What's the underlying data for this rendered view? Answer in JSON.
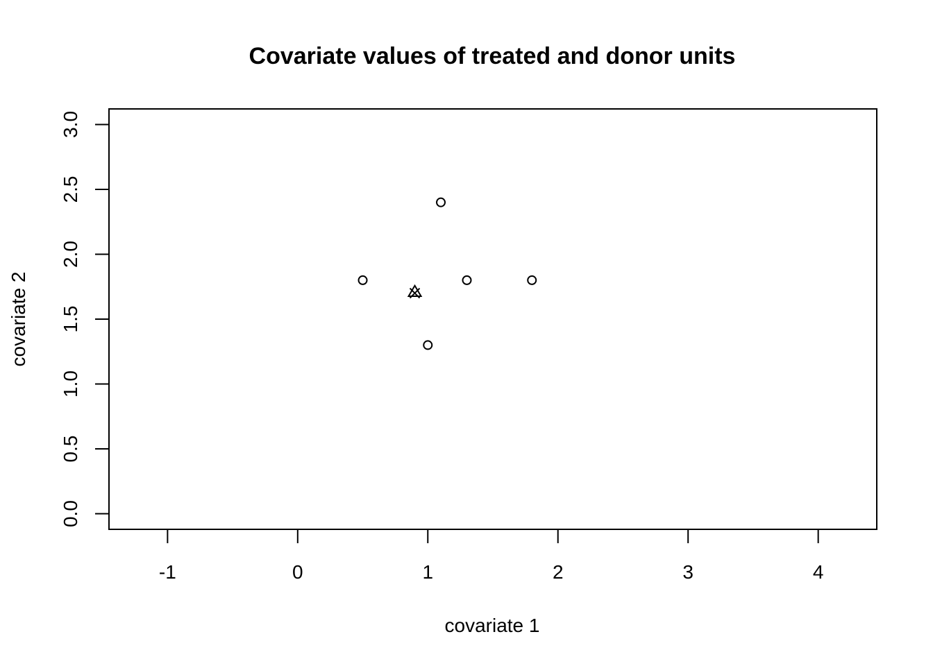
{
  "chart_data": {
    "type": "scatter",
    "title": "Covariate values of treated and donor units",
    "xlabel": "covariate 1",
    "ylabel": "covariate 2",
    "xlim": [
      -1.45,
      4.45
    ],
    "ylim": [
      -0.12,
      3.12
    ],
    "xticks": [
      -1,
      0,
      1,
      2,
      3,
      4
    ],
    "xtick_labels": [
      "-1",
      "0",
      "1",
      "2",
      "3",
      "4"
    ],
    "yticks": [
      0.0,
      0.5,
      1.0,
      1.5,
      2.0,
      2.5,
      3.0
    ],
    "ytick_labels": [
      "0.0",
      "0.5",
      "1.0",
      "1.5",
      "2.0",
      "2.5",
      "3.0"
    ],
    "grid": false,
    "series": [
      {
        "marker": "circle",
        "points": [
          {
            "x": 0.5,
            "y": 1.8
          },
          {
            "x": 1.1,
            "y": 2.4
          },
          {
            "x": 1.3,
            "y": 1.8
          },
          {
            "x": 1.8,
            "y": 1.8
          },
          {
            "x": 1.0,
            "y": 1.3
          }
        ]
      },
      {
        "marker": "cross",
        "points": [
          {
            "x": 0.9,
            "y": 1.7
          }
        ]
      },
      {
        "marker": "triangle",
        "points": [
          {
            "x": 0.9,
            "y": 1.71
          }
        ]
      }
    ],
    "colors": {
      "foreground": "#000000",
      "background": "#ffffff"
    }
  }
}
